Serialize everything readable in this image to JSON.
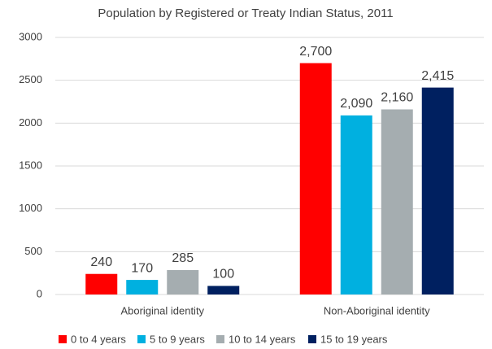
{
  "chart_data": {
    "type": "bar",
    "title": "Population by Registered or Treaty Indian Status, 2011",
    "categories": [
      "Aboriginal identity",
      "Non-Aboriginal identity"
    ],
    "series": [
      {
        "name": "0 to 4 years",
        "color": "#ff0000",
        "values": [
          240,
          2700
        ],
        "value_labels": [
          "240",
          "2,700"
        ]
      },
      {
        "name": "5 to 9 years",
        "color": "#00b0e0",
        "values": [
          170,
          2090
        ],
        "value_labels": [
          "170",
          "2,090"
        ]
      },
      {
        "name": "10 to 14 years",
        "color": "#a5adb0",
        "values": [
          285,
          2160
        ],
        "value_labels": [
          "285",
          "2,160"
        ]
      },
      {
        "name": "15 to 19 years",
        "color": "#002060",
        "values": [
          100,
          2415
        ],
        "value_labels": [
          "100",
          "2,415"
        ]
      }
    ],
    "ylim": [
      0,
      3000
    ],
    "yticks": [
      0,
      500,
      1000,
      1500,
      2000,
      2500,
      3000
    ],
    "grid": true,
    "legend": "bottom"
  }
}
